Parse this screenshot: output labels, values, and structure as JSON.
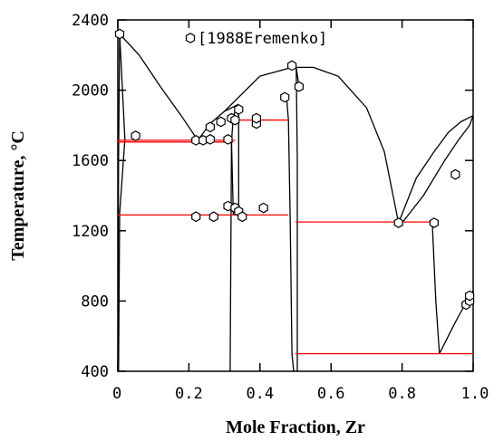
{
  "chart_data": {
    "type": "scatter",
    "xlabel": "Mole Fraction, Zr",
    "ylabel": "Temperature, °C",
    "xlim": [
      0,
      1
    ],
    "ylim": [
      400,
      2400
    ],
    "xticks": [
      0,
      0.2,
      0.4,
      0.6,
      0.8,
      1.0
    ],
    "xtick_labels": [
      "0",
      "0.2",
      "0.4",
      "0.6",
      "0.8",
      "1.0"
    ],
    "yticks": [
      400,
      800,
      1200,
      1600,
      2000,
      2400
    ],
    "ytick_labels": [
      "400",
      "800",
      "1200",
      "1600",
      "2000",
      "2400"
    ],
    "grid": false,
    "legend": {
      "label": "[1988Eremenko]",
      "placement": "top-center"
    },
    "phase_boundaries": [
      [
        [
          0.0,
          400
        ],
        [
          0.002,
          1600
        ],
        [
          0.005,
          2320
        ],
        [
          0.06,
          2200
        ],
        [
          0.12,
          2020
        ],
        [
          0.18,
          1850
        ],
        [
          0.225,
          1715
        ]
      ],
      [
        [
          0.005,
          2320
        ],
        [
          0.02,
          1720
        ],
        [
          0.005,
          1300
        ],
        [
          0.002,
          400
        ]
      ],
      [
        [
          0.225,
          1715
        ],
        [
          0.26,
          1810
        ],
        [
          0.3,
          1880
        ],
        [
          0.34,
          1920
        ]
      ],
      [
        [
          0.316,
          400
        ],
        [
          0.32,
          1710
        ],
        [
          0.325,
          1850
        ],
        [
          0.33,
          1880
        ]
      ],
      [
        [
          0.33,
          1880
        ],
        [
          0.34,
          1860
        ],
        [
          0.34,
          1280
        ]
      ],
      [
        [
          0.32,
          1710
        ],
        [
          0.325,
          1290
        ]
      ],
      [
        [
          0.3,
          1880
        ],
        [
          0.4,
          2080
        ],
        [
          0.49,
          2130
        ],
        [
          0.55,
          2130
        ],
        [
          0.62,
          2080
        ],
        [
          0.7,
          1900
        ],
        [
          0.75,
          1650
        ],
        [
          0.79,
          1245
        ]
      ],
      [
        [
          0.475,
          1960
        ],
        [
          0.48,
          1830
        ],
        [
          0.485,
          1280
        ],
        [
          0.49,
          500
        ],
        [
          0.495,
          400
        ]
      ],
      [
        [
          0.505,
          400
        ],
        [
          0.505,
          1600
        ],
        [
          0.502,
          2130
        ],
        [
          0.51,
          2020
        ]
      ],
      [
        [
          0.79,
          1245
        ],
        [
          0.84,
          1500
        ],
        [
          0.89,
          1650
        ],
        [
          0.93,
          1760
        ],
        [
          0.965,
          1820
        ],
        [
          1.0,
          1855
        ]
      ],
      [
        [
          0.8,
          1245
        ],
        [
          0.86,
          1400
        ],
        [
          0.92,
          1600
        ],
        [
          0.96,
          1720
        ],
        [
          0.99,
          1800
        ],
        [
          1.0,
          1855
        ]
      ],
      [
        [
          0.885,
          1245
        ],
        [
          0.895,
          800
        ],
        [
          0.905,
          500
        ]
      ],
      [
        [
          0.905,
          500
        ],
        [
          0.95,
          680
        ],
        [
          0.985,
          810
        ],
        [
          1.0,
          860
        ]
      ]
    ],
    "isotherms": [
      {
        "x": [
          0.0,
          0.33
        ],
        "y": 1715
      },
      {
        "x": [
          0.0,
          0.325
        ],
        "y": 1705
      },
      {
        "x": [
          0.33,
          0.48
        ],
        "y": 1830
      },
      {
        "x": [
          0.0,
          0.48
        ],
        "y": 1290
      },
      {
        "x": [
          0.5,
          0.89
        ],
        "y": 1250
      },
      {
        "x": [
          0.5,
          1.0
        ],
        "y": 500
      }
    ],
    "points": [
      {
        "x": 0.005,
        "y": 2320
      },
      {
        "x": 0.05,
        "y": 1740
      },
      {
        "x": 0.22,
        "y": 1715
      },
      {
        "x": 0.24,
        "y": 1715
      },
      {
        "x": 0.26,
        "y": 1720
      },
      {
        "x": 0.26,
        "y": 1790
      },
      {
        "x": 0.29,
        "y": 1820
      },
      {
        "x": 0.31,
        "y": 1720
      },
      {
        "x": 0.32,
        "y": 1840
      },
      {
        "x": 0.33,
        "y": 1830
      },
      {
        "x": 0.34,
        "y": 1890
      },
      {
        "x": 0.39,
        "y": 1810
      },
      {
        "x": 0.39,
        "y": 1840
      },
      {
        "x": 0.22,
        "y": 1280
      },
      {
        "x": 0.27,
        "y": 1280
      },
      {
        "x": 0.31,
        "y": 1340
      },
      {
        "x": 0.33,
        "y": 1330
      },
      {
        "x": 0.34,
        "y": 1310
      },
      {
        "x": 0.35,
        "y": 1280
      },
      {
        "x": 0.41,
        "y": 1330
      },
      {
        "x": 0.47,
        "y": 1960
      },
      {
        "x": 0.49,
        "y": 2140
      },
      {
        "x": 0.51,
        "y": 2020
      },
      {
        "x": 0.79,
        "y": 1245
      },
      {
        "x": 0.89,
        "y": 1245
      },
      {
        "x": 0.95,
        "y": 1520
      },
      {
        "x": 0.98,
        "y": 780
      },
      {
        "x": 0.99,
        "y": 800
      },
      {
        "x": 0.99,
        "y": 830
      }
    ],
    "colors": {
      "curve": "#000000",
      "isotherm": "#ff0000",
      "marker": "#000000"
    }
  }
}
